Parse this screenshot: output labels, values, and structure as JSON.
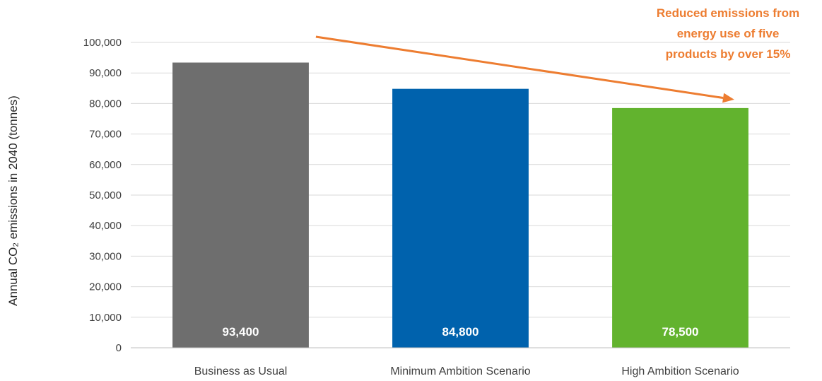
{
  "chart_data": {
    "type": "bar",
    "categories": [
      "Business as Usual",
      "Minimum Ambition Scenario",
      "High Ambition Scenario"
    ],
    "values": [
      93400,
      84800,
      78500
    ],
    "value_labels": [
      "93,400",
      "84,800",
      "78,500"
    ],
    "bar_colors": [
      "#6E6E6E",
      "#0062AD",
      "#62B32E"
    ],
    "title": "",
    "xlabel": "",
    "ylabel": "Annual CO₂ emissions in 2040 (tonnes)",
    "ylim": [
      0,
      100000
    ],
    "yticks": [
      0,
      10000,
      20000,
      30000,
      40000,
      50000,
      60000,
      70000,
      80000,
      90000,
      100000
    ],
    "ytick_labels": [
      "0",
      "10,000",
      "20,000",
      "30,000",
      "40,000",
      "50,000",
      "60,000",
      "70,000",
      "80,000",
      "90,000",
      "100,000"
    ],
    "grid": true,
    "legend": "none",
    "annotation": {
      "lines": [
        "Reduced emissions from",
        "energy use of five",
        "products by over 15%"
      ],
      "color": "#ED7D31",
      "arrow": "downward trend arrow from first to third category"
    }
  }
}
